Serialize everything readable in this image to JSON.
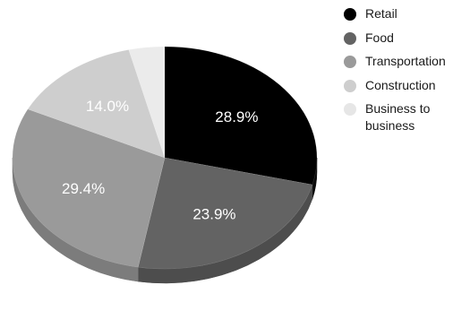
{
  "chart_data": {
    "type": "pie",
    "style": "3d",
    "title": "",
    "legend_position": "right",
    "slices": [
      {
        "label": "Retail",
        "value": 28.9,
        "display": "28.9%",
        "color": "#000000",
        "side_color": "#0a0a0a"
      },
      {
        "label": "Food",
        "value": 23.9,
        "display": "23.9%",
        "color": "#636363",
        "side_color": "#4d4d4d"
      },
      {
        "label": "Transportation",
        "value": 29.4,
        "display": "29.4%",
        "color": "#9a9a9a",
        "side_color": "#7c7c7c"
      },
      {
        "label": "Construction",
        "value": 14.0,
        "display": "14.0%",
        "color": "#cecece",
        "side_color": "#b4b4b4"
      },
      {
        "label": "Business to business",
        "value": 3.8,
        "display": "",
        "color": "#ebebeb",
        "side_color": "#d4d4d4"
      }
    ]
  }
}
